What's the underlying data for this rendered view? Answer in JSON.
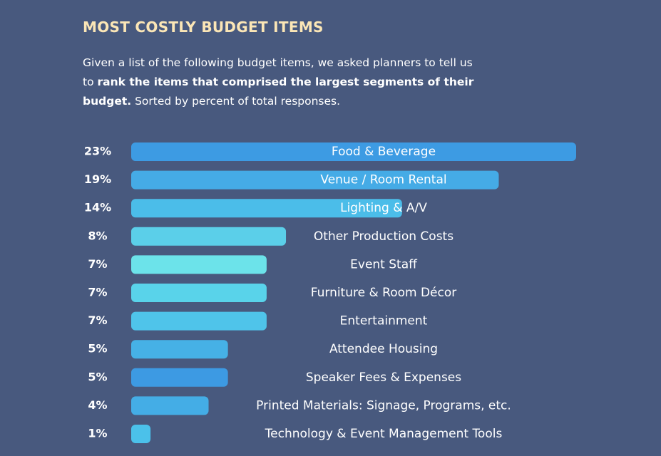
{
  "chart_data": {
    "type": "bar",
    "title": "MOST COSTLY BUDGET ITEMS",
    "description": {
      "intro": "Given a list of the following budget items, we asked planners to tell us to",
      "emphasis": "rank the items that comprised the largest segments of their budget.",
      "outro": "Sorted by percent of total responses."
    },
    "categories": [
      "Food & Beverage",
      "Venue / Room Rental",
      "Lighting & A/V",
      "Other Production Costs",
      "Event Staff",
      "Furniture & Room Décor",
      "Entertainment",
      "Attendee Housing",
      "Speaker Fees & Expenses",
      "Printed Materials: Signage, Programs, etc.",
      "Technology & Event Management Tools"
    ],
    "values": [
      23,
      19,
      14,
      8,
      7,
      7,
      7,
      5,
      5,
      4,
      1
    ],
    "value_labels": [
      "23%",
      "19%",
      "14%",
      "8%",
      "7%",
      "7%",
      "7%",
      "5%",
      "5%",
      "4%",
      "1%"
    ],
    "colors": [
      "#3d9be3",
      "#45abe6",
      "#4bbde9",
      "#5bcfe9",
      "#6ce3ea",
      "#59d3ea",
      "#4fc4ea",
      "#46b1e6",
      "#3d9ae3",
      "#44ade6",
      "#4bc1ea"
    ]
  }
}
